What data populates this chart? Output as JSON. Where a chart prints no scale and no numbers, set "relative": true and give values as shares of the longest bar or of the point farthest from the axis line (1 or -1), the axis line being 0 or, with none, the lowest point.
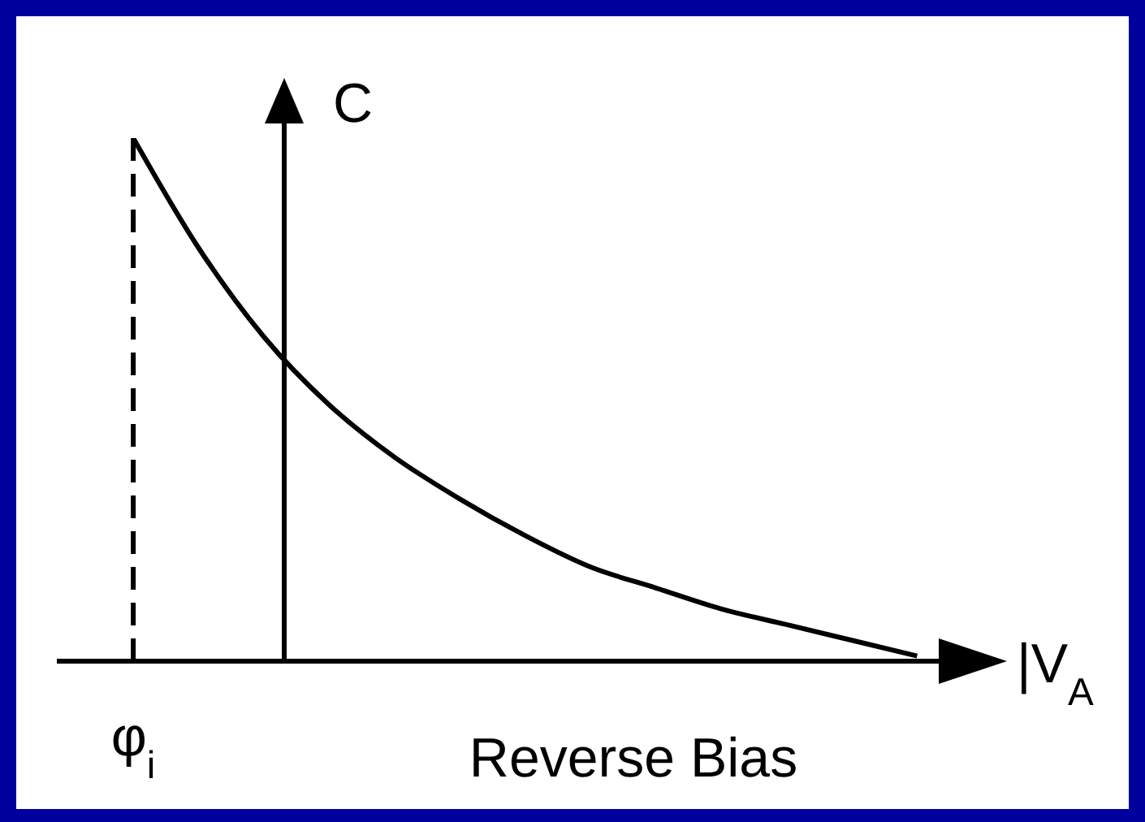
{
  "chart_data": {
    "type": "line",
    "relative": true,
    "xlabel": "|V$_{A}$",
    "ylabel": "C",
    "annotations": [
      "Reverse Bias"
    ],
    "categories": [
      null,
      null,
      null,
      null,
      null,
      null,
      null,
      null,
      null,
      null,
      null,
      null,
      null
    ],
    "series": [
      {
        "color": "#000000",
        "values": [
          1,
          0.79,
          0.62,
          0.49,
          0.39,
          0.31,
          0.24,
          0.18,
          0.14,
          0.1,
          0.07,
          0.04,
          0.01
        ]
      }
    ],
    "ref_lines": [
      {
        "axis": "x",
        "label": "φ$_{i}$",
        "line_style": "dashed",
        "color": "#000000"
      }
    ],
    "marker": "none",
    "line_style": "solid",
    "legend": false,
    "grid": false
  }
}
